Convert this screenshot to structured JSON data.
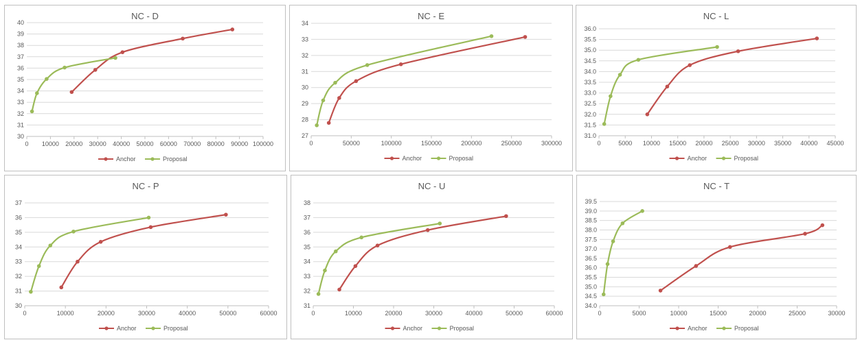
{
  "colors": {
    "anchor": "#c0504d",
    "proposal": "#9bbb59",
    "grid": "#d9d9d9",
    "axis": "#bfbfbf"
  },
  "legend": {
    "placement": "bottom",
    "labels": [
      "Anchor",
      "Proposal"
    ]
  },
  "chart_data": [
    {
      "type": "line",
      "title": "NC - D",
      "xlim": [
        0,
        100000
      ],
      "xstep": 10000,
      "ylim": [
        30,
        40
      ],
      "ystep": 1,
      "grid": "horizontal",
      "series": [
        {
          "name": "Anchor",
          "color": "#c0504d",
          "x": [
            19000,
            29000,
            40500,
            66000,
            87000
          ],
          "y": [
            33.9,
            35.85,
            37.4,
            38.6,
            39.4
          ]
        },
        {
          "name": "Proposal",
          "color": "#9bbb59",
          "x": [
            2200,
            4300,
            8400,
            16000,
            37500
          ],
          "y": [
            32.2,
            33.8,
            35.05,
            36.05,
            36.9
          ]
        }
      ]
    },
    {
      "type": "line",
      "title": "NC - E",
      "xlim": [
        0,
        300000
      ],
      "xstep": 50000,
      "ylim": [
        27,
        34
      ],
      "ystep": 1,
      "grid": "horizontal",
      "series": [
        {
          "name": "Anchor",
          "color": "#c0504d",
          "x": [
            22000,
            35000,
            56000,
            112000,
            267000
          ],
          "y": [
            27.8,
            29.35,
            30.4,
            31.45,
            33.15
          ]
        },
        {
          "name": "Proposal",
          "color": "#9bbb59",
          "x": [
            7000,
            15000,
            30000,
            70000,
            225000
          ],
          "y": [
            27.65,
            29.2,
            30.3,
            31.4,
            33.2
          ]
        }
      ]
    },
    {
      "type": "line",
      "title": "NC - L",
      "xlim": [
        0,
        45000
      ],
      "xstep": 5000,
      "ylim": [
        31,
        36
      ],
      "ystep": 0.5,
      "grid": "horizontal",
      "series": [
        {
          "name": "Anchor",
          "color": "#c0504d",
          "x": [
            9200,
            13000,
            17300,
            26500,
            41500
          ],
          "y": [
            32.0,
            33.3,
            34.3,
            34.95,
            35.55
          ]
        },
        {
          "name": "Proposal",
          "color": "#9bbb59",
          "x": [
            1000,
            2200,
            4000,
            7500,
            22500
          ],
          "y": [
            31.55,
            32.85,
            33.85,
            34.55,
            35.15
          ]
        }
      ]
    },
    {
      "type": "line",
      "title": "NC - P",
      "xlim": [
        0,
        60000
      ],
      "xstep": 10000,
      "ylim": [
        30,
        37
      ],
      "ystep": 1,
      "grid": "horizontal",
      "series": [
        {
          "name": "Anchor",
          "color": "#c0504d",
          "x": [
            9000,
            13000,
            18700,
            31000,
            49500
          ],
          "y": [
            31.25,
            33.0,
            34.35,
            35.35,
            36.2
          ]
        },
        {
          "name": "Proposal",
          "color": "#9bbb59",
          "x": [
            1500,
            3500,
            6300,
            12000,
            30500
          ],
          "y": [
            30.95,
            32.7,
            34.1,
            35.05,
            36.0
          ]
        }
      ]
    },
    {
      "type": "line",
      "title": "NC - U",
      "xlim": [
        0,
        60000
      ],
      "xstep": 10000,
      "ylim": [
        31,
        38
      ],
      "ystep": 1,
      "grid": "horizontal",
      "series": [
        {
          "name": "Anchor",
          "color": "#c0504d",
          "x": [
            6500,
            10500,
            16000,
            28500,
            48000
          ],
          "y": [
            32.1,
            33.7,
            35.1,
            36.15,
            37.1
          ]
        },
        {
          "name": "Proposal",
          "color": "#9bbb59",
          "x": [
            1300,
            2900,
            5600,
            12000,
            31500
          ],
          "y": [
            31.8,
            33.4,
            34.7,
            35.65,
            36.6
          ]
        }
      ]
    },
    {
      "type": "line",
      "title": "NC - T",
      "xlim": [
        0,
        30000
      ],
      "xstep": 5000,
      "ylim": [
        34,
        39.5
      ],
      "ystep": 0.5,
      "grid": "horizontal",
      "series": [
        {
          "name": "Anchor",
          "color": "#c0504d",
          "x": [
            7700,
            12200,
            16500,
            26000,
            28200
          ],
          "y": [
            34.8,
            36.1,
            37.1,
            37.8,
            38.25
          ]
        },
        {
          "name": "Proposal",
          "color": "#9bbb59",
          "x": [
            500,
            1000,
            1700,
            2900,
            5400
          ],
          "y": [
            34.6,
            36.2,
            37.4,
            38.35,
            39.0
          ]
        }
      ]
    }
  ]
}
